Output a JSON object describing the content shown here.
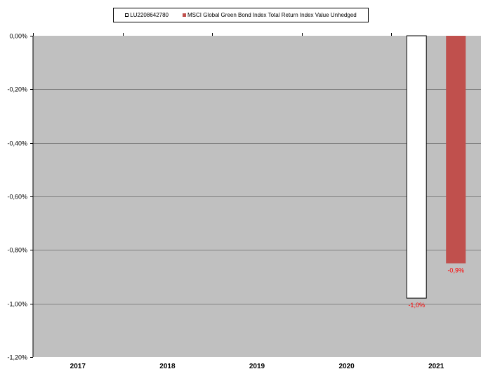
{
  "chart_data": {
    "type": "bar",
    "categories": [
      "2017",
      "2018",
      "2019",
      "2020",
      "2021"
    ],
    "series": [
      {
        "name": "LU2208642780",
        "color": "#ffffff",
        "values": [
          null,
          null,
          null,
          null,
          -0.98
        ],
        "labels": [
          "",
          "",
          "",
          "",
          "-1,0%"
        ]
      },
      {
        "name": "MSCI Global Green Bond Index Total Return Index Value Unhedged",
        "color": "#c0504d",
        "values": [
          null,
          null,
          null,
          null,
          -0.85
        ],
        "labels": [
          "",
          "",
          "",
          "",
          "-0,9%"
        ]
      }
    ],
    "ylim": [
      -1.2,
      0
    ],
    "yticks": [
      0,
      -0.2,
      -0.4,
      -0.6,
      -0.8,
      -1.0,
      -1.2
    ],
    "ytick_labels": [
      "0,00%",
      "-0,20%",
      "-0,40%",
      "-0,60%",
      "-0,80%",
      "-1,00%",
      "-1,20%"
    ],
    "data_label_color": "#ff0000",
    "plot_background": "#c0c0c0",
    "grid": true,
    "legend_position": "top"
  }
}
